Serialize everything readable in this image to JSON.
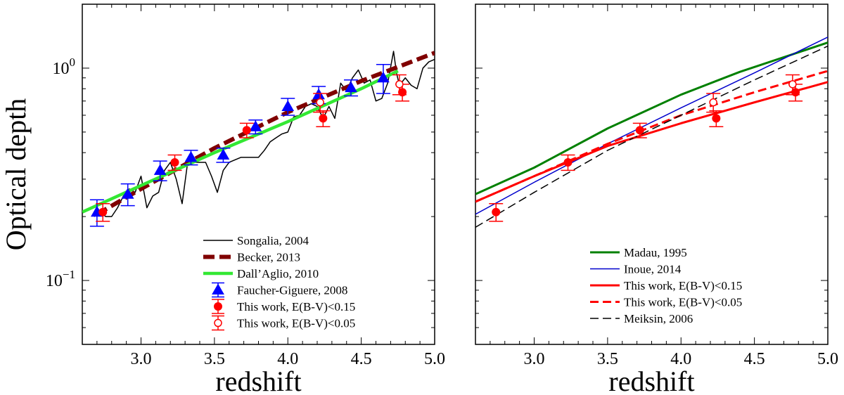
{
  "chart_data": [
    {
      "type": "line",
      "panel": "left",
      "xlabel": "redshift",
      "ylabel": "Optical depth",
      "xlim": [
        2.6,
        5.0
      ],
      "ylim": [
        0.05,
        2.0
      ],
      "yscale": "log",
      "xticks": [
        "3.0",
        "3.5",
        "4.0",
        "4.5",
        "5.0"
      ],
      "yticks": [
        {
          "value": 1.0,
          "base": "10",
          "exp": "0"
        },
        {
          "value": 0.1,
          "base": "10",
          "exp": "−1"
        }
      ],
      "legend_position": "lower-right",
      "series": [
        {
          "name": "Songalia, 2004",
          "style": "solid-thin",
          "color": "#000000",
          "x": [
            2.68,
            2.72,
            2.76,
            2.8,
            2.84,
            2.88,
            2.92,
            2.96,
            3.0,
            3.04,
            3.08,
            3.12,
            3.16,
            3.2,
            3.24,
            3.28,
            3.32,
            3.36,
            3.4,
            3.44,
            3.48,
            3.52,
            3.56,
            3.6,
            3.64,
            3.68,
            3.72,
            3.76,
            3.8,
            3.84,
            3.88,
            3.92,
            3.96,
            4.0,
            4.04,
            4.08,
            4.12,
            4.16,
            4.2,
            4.24,
            4.28,
            4.32,
            4.36,
            4.4,
            4.44,
            4.48,
            4.52,
            4.56,
            4.6,
            4.64,
            4.68,
            4.72,
            4.74,
            4.76,
            4.8,
            4.84,
            4.88,
            4.92,
            4.96,
            5.0
          ],
          "y": [
            0.2,
            0.21,
            0.2,
            0.2,
            0.22,
            0.25,
            0.27,
            0.26,
            0.31,
            0.22,
            0.25,
            0.26,
            0.33,
            0.36,
            0.3,
            0.23,
            0.37,
            0.36,
            0.36,
            0.36,
            0.31,
            0.26,
            0.33,
            0.36,
            0.37,
            0.38,
            0.38,
            0.38,
            0.38,
            0.41,
            0.45,
            0.47,
            0.49,
            0.5,
            0.59,
            0.6,
            0.66,
            0.68,
            0.66,
            0.58,
            0.66,
            0.58,
            0.85,
            0.78,
            0.9,
            0.98,
            0.85,
            0.88,
            0.7,
            0.72,
            0.85,
            1.2,
            0.95,
            0.83,
            0.9,
            0.83,
            0.8,
            1.0,
            1.07,
            1.1
          ]
        },
        {
          "name": "Becker, 2013",
          "style": "dashed-thick",
          "color": "#800000",
          "x": [
            2.7,
            3.0,
            3.5,
            4.0,
            4.5,
            5.0
          ],
          "y": [
            0.205,
            0.27,
            0.42,
            0.62,
            0.87,
            1.18
          ]
        },
        {
          "name": "Dall’Aglio, 2010",
          "style": "solid-thick",
          "color": "#33e833",
          "x": [
            2.6,
            3.0,
            3.5,
            4.0,
            4.5,
            4.75
          ],
          "y": [
            0.21,
            0.28,
            0.4,
            0.56,
            0.8,
            0.97
          ]
        }
      ],
      "points": [
        {
          "name": "Faucher-Giguere, 2008",
          "marker": "triangle",
          "color": "#0000ff",
          "x": [
            2.7,
            2.91,
            3.13,
            3.34,
            3.56,
            3.78,
            4.0,
            4.21,
            4.43,
            4.65
          ],
          "y": [
            0.21,
            0.255,
            0.33,
            0.38,
            0.39,
            0.53,
            0.66,
            0.75,
            0.81,
            0.9
          ],
          "yerr": [
            0.03,
            0.03,
            0.035,
            0.03,
            0.03,
            0.04,
            0.06,
            0.07,
            0.07,
            0.14
          ]
        },
        {
          "name": "This work, E(B-V)<0.15",
          "marker": "circle-filled",
          "color": "#ff0000",
          "x": [
            2.74,
            3.23,
            3.72,
            4.24,
            4.78
          ],
          "y": [
            0.21,
            0.36,
            0.51,
            0.58,
            0.77
          ],
          "yerr": [
            0.02,
            0.03,
            0.04,
            0.05,
            0.07
          ]
        },
        {
          "name": "This work, E(B-V)<0.05",
          "marker": "circle-open",
          "color": "#ff0000",
          "x": [
            4.22,
            4.76
          ],
          "y": [
            0.69,
            0.84
          ],
          "yerr": [
            0.07,
            0.09
          ]
        }
      ]
    },
    {
      "type": "line",
      "panel": "right",
      "xlabel": "redshift",
      "ylabel": "",
      "xlim": [
        2.6,
        5.0
      ],
      "ylim": [
        0.05,
        2.0
      ],
      "yscale": "log",
      "xticks": [
        "3.0",
        "3.5",
        "4.0",
        "4.5",
        "5.0"
      ],
      "legend_position": "lower-right",
      "series": [
        {
          "name": "Madau, 1995",
          "style": "solid-medium",
          "color": "#008000",
          "x": [
            2.6,
            3.0,
            3.5,
            4.0,
            4.4,
            5.0
          ],
          "y": [
            0.255,
            0.34,
            0.52,
            0.75,
            0.96,
            1.32
          ]
        },
        {
          "name": "Inoue, 2014",
          "style": "solid-thin",
          "color": "#0000cc",
          "x": [
            2.6,
            3.0,
            3.5,
            4.0,
            4.5,
            5.0
          ],
          "y": [
            0.205,
            0.29,
            0.44,
            0.65,
            0.95,
            1.4
          ]
        },
        {
          "name": "This work, E(B-V)<0.15",
          "style": "solid-medium",
          "color": "#ff0000",
          "x": [
            2.6,
            3.0,
            3.5,
            4.0,
            4.5,
            5.0
          ],
          "y": [
            0.235,
            0.31,
            0.43,
            0.55,
            0.69,
            0.86
          ]
        },
        {
          "name": "This work, E(B-V)<0.05",
          "style": "dashed-medium",
          "color": "#ff0000",
          "x": [
            2.6,
            3.0,
            3.5,
            4.0,
            4.5,
            5.0
          ],
          "y": [
            0.235,
            0.31,
            0.44,
            0.6,
            0.77,
            0.97
          ]
        },
        {
          "name": "Meiksin, 2006",
          "style": "dashed-thin",
          "color": "#000000",
          "x": [
            2.6,
            3.0,
            3.5,
            4.0,
            4.5,
            5.0
          ],
          "y": [
            0.178,
            0.26,
            0.41,
            0.6,
            0.88,
            1.27
          ]
        }
      ],
      "points": [
        {
          "name": "This work, E(B-V)<0.15",
          "marker": "circle-filled",
          "color": "#ff0000",
          "x": [
            2.74,
            3.23,
            3.72,
            4.24,
            4.78
          ],
          "y": [
            0.21,
            0.36,
            0.51,
            0.58,
            0.77
          ],
          "yerr": [
            0.02,
            0.03,
            0.04,
            0.05,
            0.07
          ]
        },
        {
          "name": "This work, E(B-V)<0.05",
          "marker": "circle-open",
          "color": "#ff0000",
          "x": [
            4.22,
            4.76
          ],
          "y": [
            0.69,
            0.84
          ],
          "yerr": [
            0.07,
            0.09
          ]
        }
      ]
    }
  ]
}
